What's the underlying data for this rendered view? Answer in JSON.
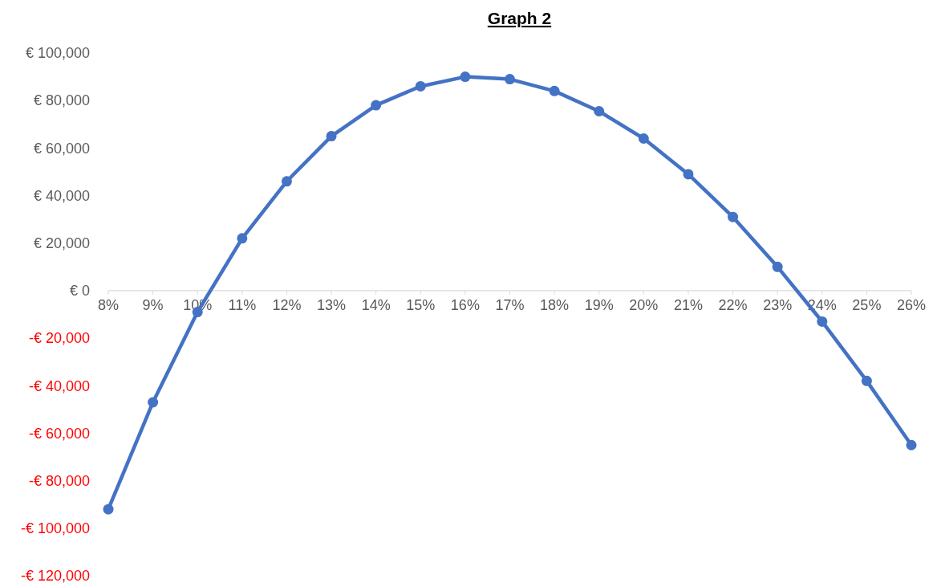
{
  "chart_data": {
    "type": "line",
    "title": "Graph 2",
    "categories": [
      "8%",
      "9%",
      "10%",
      "11%",
      "12%",
      "13%",
      "14%",
      "15%",
      "16%",
      "17%",
      "18%",
      "19%",
      "20%",
      "21%",
      "22%",
      "23%",
      "24%",
      "25%",
      "26%"
    ],
    "series": [
      {
        "color": "#4472c4",
        "values": [
          -92000,
          -47000,
          -9000,
          22000,
          46000,
          65000,
          78000,
          86000,
          90000,
          89000,
          84000,
          75500,
          64000,
          49000,
          31000,
          10000,
          -13000,
          -38000,
          -65000
        ]
      }
    ],
    "ylim": [
      -120000,
      100000
    ],
    "yticks": [
      {
        "value": -120000,
        "label": "-€ 120,000"
      },
      {
        "value": -100000,
        "label": "-€ 100,000"
      },
      {
        "value": -80000,
        "label": "-€ 80,000"
      },
      {
        "value": -60000,
        "label": "-€ 60,000"
      },
      {
        "value": -40000,
        "label": "-€ 40,000"
      },
      {
        "value": -20000,
        "label": "-€ 20,000"
      },
      {
        "value": 0,
        "label": "€ 0"
      },
      {
        "value": 20000,
        "label": "€ 20,000"
      },
      {
        "value": 40000,
        "label": "€ 40,000"
      },
      {
        "value": 60000,
        "label": "€ 60,000"
      },
      {
        "value": 80000,
        "label": "€ 80,000"
      },
      {
        "value": 100000,
        "label": "€ 100,000"
      }
    ],
    "grid": false,
    "marker": "circle",
    "line_style": "solid"
  }
}
